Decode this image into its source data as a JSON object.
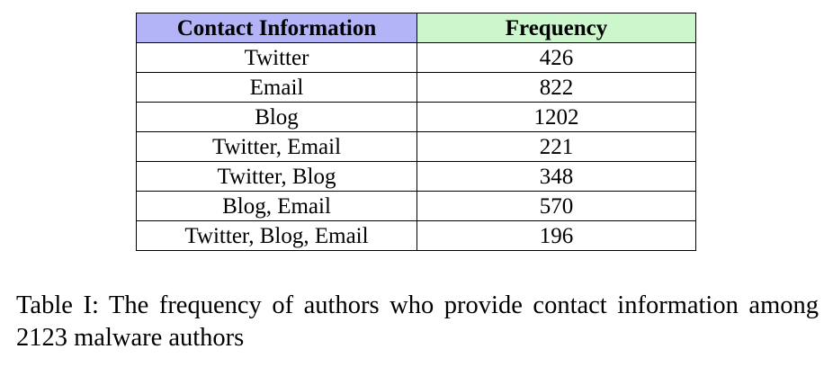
{
  "table": {
    "headers": [
      {
        "label": "Contact Information",
        "color": "#b3b3f7"
      },
      {
        "label": "Frequency",
        "color": "#ccf7cc"
      }
    ],
    "rows": [
      {
        "contact": "Twitter",
        "frequency": "426"
      },
      {
        "contact": "Email",
        "frequency": "822"
      },
      {
        "contact": "Blog",
        "frequency": "1202"
      },
      {
        "contact": "Twitter, Email",
        "frequency": "221"
      },
      {
        "contact": "Twitter, Blog",
        "frequency": "348"
      },
      {
        "contact": "Blog, Email",
        "frequency": "570"
      },
      {
        "contact": "Twitter, Blog, Email",
        "frequency": "196"
      }
    ]
  },
  "caption": "Table I: The frequency of authors who provide contact information among 2123 malware authors"
}
